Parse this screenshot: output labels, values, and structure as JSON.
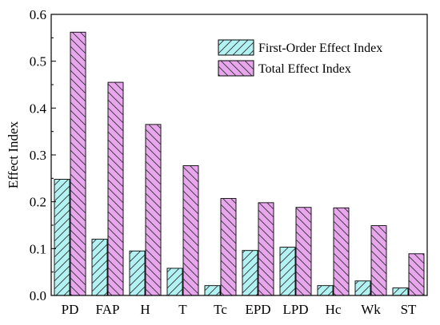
{
  "chart_data": {
    "type": "bar",
    "title": "",
    "xlabel": "",
    "ylabel": "Effect Index",
    "ylim": [
      0,
      0.6
    ],
    "yticks": [
      "0.0",
      "0.1",
      "0.2",
      "0.3",
      "0.4",
      "0.5",
      "0.6"
    ],
    "grid": false,
    "legend_position": "top-right",
    "categories": [
      "PD",
      "FAP",
      "H",
      "T",
      "Tc",
      "EPD",
      "LPD",
      "Hc",
      "Wk",
      "ST"
    ],
    "series": [
      {
        "name": "First-Order Effect Index",
        "color": "#b3f2f2",
        "hatch": "forward-diagonal",
        "values": [
          0.248,
          0.12,
          0.095,
          0.058,
          0.021,
          0.096,
          0.103,
          0.021,
          0.031,
          0.016
        ]
      },
      {
        "name": "Total Effect Index",
        "color": "#e8a6ed",
        "hatch": "back-diagonal",
        "values": [
          0.562,
          0.455,
          0.365,
          0.277,
          0.207,
          0.198,
          0.188,
          0.187,
          0.149,
          0.089
        ]
      }
    ]
  }
}
